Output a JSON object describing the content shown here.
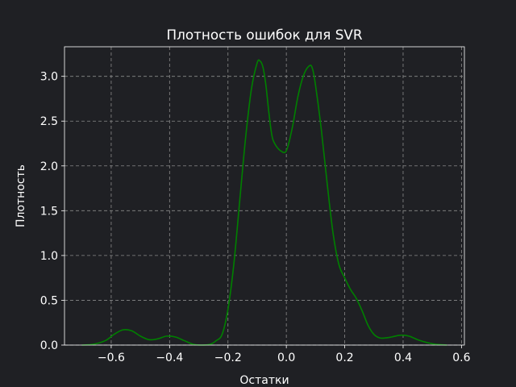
{
  "chart_data": {
    "type": "line",
    "title": "Плотность ошибок для SVR",
    "xlabel": "Остатки",
    "ylabel": "Плотность",
    "xlim": [
      -0.76,
      0.61
    ],
    "ylim": [
      0,
      3.33
    ],
    "xticks": [
      -0.6,
      -0.4,
      -0.2,
      0.0,
      0.2,
      0.4,
      0.6
    ],
    "xtick_labels": [
      "−0.6",
      "−0.4",
      "−0.2",
      "0.0",
      "0.2",
      "0.4",
      "0.6"
    ],
    "yticks": [
      0.0,
      0.5,
      1.0,
      1.5,
      2.0,
      2.5,
      3.0
    ],
    "ytick_labels": [
      "0.0",
      "0.5",
      "1.0",
      "1.5",
      "2.0",
      "2.5",
      "3.0"
    ],
    "grid": true,
    "series": [
      {
        "color": "#008000",
        "x": [
          -0.7,
          -0.66,
          -0.62,
          -0.59,
          -0.56,
          -0.53,
          -0.5,
          -0.47,
          -0.44,
          -0.41,
          -0.38,
          -0.35,
          -0.32,
          -0.29,
          -0.26,
          -0.24,
          -0.22,
          -0.2,
          -0.18,
          -0.16,
          -0.14,
          -0.12,
          -0.1,
          -0.09,
          -0.08,
          -0.07,
          -0.06,
          -0.05,
          -0.04,
          -0.02,
          0.0,
          0.02,
          0.04,
          0.06,
          0.08,
          0.09,
          0.1,
          0.12,
          0.14,
          0.16,
          0.18,
          0.2,
          0.22,
          0.24,
          0.26,
          0.28,
          0.3,
          0.32,
          0.34,
          0.36,
          0.39,
          0.42,
          0.45,
          0.48,
          0.51,
          0.55
        ],
        "values": [
          0.0,
          0.01,
          0.05,
          0.12,
          0.17,
          0.16,
          0.1,
          0.06,
          0.07,
          0.1,
          0.09,
          0.05,
          0.01,
          0.0,
          0.01,
          0.05,
          0.12,
          0.4,
          0.9,
          1.6,
          2.3,
          2.85,
          3.15,
          3.17,
          3.1,
          2.9,
          2.6,
          2.35,
          2.25,
          2.17,
          2.17,
          2.42,
          2.78,
          3.02,
          3.12,
          3.08,
          2.9,
          2.4,
          1.8,
          1.25,
          0.9,
          0.75,
          0.62,
          0.52,
          0.38,
          0.22,
          0.12,
          0.08,
          0.08,
          0.09,
          0.11,
          0.1,
          0.06,
          0.03,
          0.01,
          0.0
        ]
      }
    ]
  }
}
